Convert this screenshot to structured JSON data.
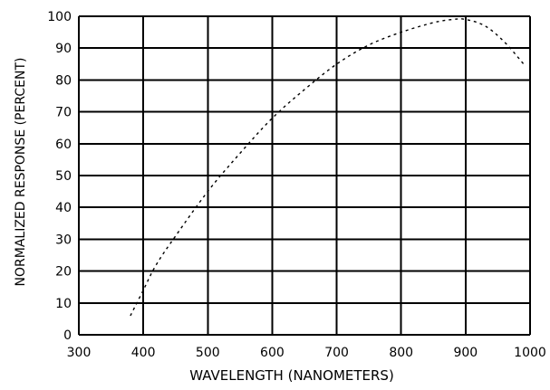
{
  "chart_data": {
    "type": "line",
    "xlabel": "WAVELENGTH (NANOMETERS)",
    "ylabel": "NORMALIZED RESPONSE (PERCENT)",
    "xlim": [
      300,
      1000
    ],
    "ylim": [
      0,
      100
    ],
    "x_ticks": [
      300,
      400,
      500,
      600,
      700,
      800,
      900,
      1000
    ],
    "y_ticks": [
      0,
      10,
      20,
      30,
      40,
      50,
      60,
      70,
      80,
      90,
      100
    ],
    "grid": true,
    "legend": "none",
    "line_style": "dashed",
    "colors": {
      "line": "#000000",
      "grid": "#000000",
      "background": "#ffffff"
    },
    "series": [
      {
        "x": [
          380,
          400,
          420,
          450,
          500,
          550,
          600,
          650,
          700,
          750,
          800,
          850,
          880,
          900,
          930,
          960,
          990
        ],
        "y": [
          6,
          14,
          22,
          31,
          45,
          57,
          68,
          77,
          85,
          91,
          95,
          98,
          99,
          99,
          97,
          92,
          85
        ]
      }
    ]
  }
}
